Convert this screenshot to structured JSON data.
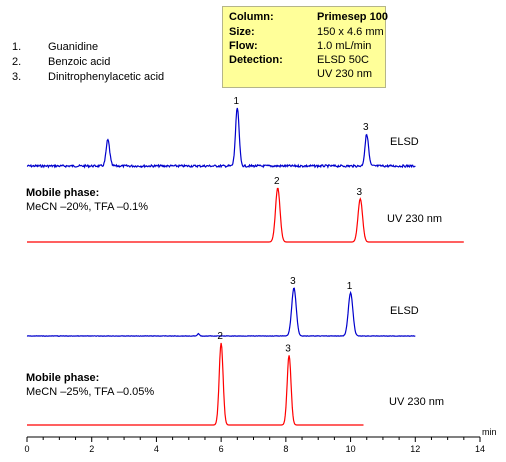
{
  "info_box": {
    "rows": [
      {
        "key": "Column:",
        "value": "Primesep 100"
      },
      {
        "key": "Size:",
        "value": "150 x 4.6 mm"
      },
      {
        "key": "Flow:",
        "value": "1.0 mL/min"
      },
      {
        "key": "Detection:",
        "value": "ELSD 50C"
      },
      {
        "key": "",
        "value": "UV 230 nm"
      }
    ]
  },
  "legend": [
    {
      "num": "1.",
      "name": "Guanidine"
    },
    {
      "num": "2.",
      "name": "Benzoic acid"
    },
    {
      "num": "3.",
      "name": "Dinitrophenylacetic acid"
    }
  ],
  "mobile_phases": [
    {
      "title": "Mobile phase:",
      "desc": "MeCN –20%, TFA –0.1%"
    },
    {
      "title": "Mobile phase:",
      "desc": "MeCN –25%, TFA –0.05%"
    }
  ],
  "chart_data": {
    "type": "line",
    "xlabel": "min",
    "xlim": [
      0,
      14
    ],
    "x_ticks": [
      0,
      2,
      4,
      6,
      8,
      10,
      12,
      14
    ],
    "series": [
      {
        "name": "ELSD",
        "color": "#0000cc",
        "x_end": 12.0,
        "peaks": [
          {
            "rt": 2.5,
            "height": 0.45,
            "label": ""
          },
          {
            "rt": 6.5,
            "height": 1.0,
            "label": "1"
          },
          {
            "rt": 10.5,
            "height": 0.55,
            "label": "3"
          }
        ]
      },
      {
        "name": "UV 230 nm",
        "color": "#ff0000",
        "x_end": 13.5,
        "peaks": [
          {
            "rt": 7.75,
            "height": 1.0,
            "label": "2"
          },
          {
            "rt": 10.3,
            "height": 0.8,
            "label": "3"
          }
        ]
      },
      {
        "name": "ELSD",
        "color": "#0000cc",
        "x_end": 12.0,
        "peaks": [
          {
            "rt": 5.3,
            "height": 0.05,
            "label": ""
          },
          {
            "rt": 8.25,
            "height": 1.0,
            "label": "3"
          },
          {
            "rt": 10.0,
            "height": 0.9,
            "label": "1"
          }
        ]
      },
      {
        "name": "UV 230 nm",
        "color": "#ff0000",
        "x_end": 10.4,
        "peaks": [
          {
            "rt": 6.0,
            "height": 1.0,
            "label": "2"
          },
          {
            "rt": 8.1,
            "height": 0.85,
            "label": "3"
          }
        ]
      }
    ]
  }
}
